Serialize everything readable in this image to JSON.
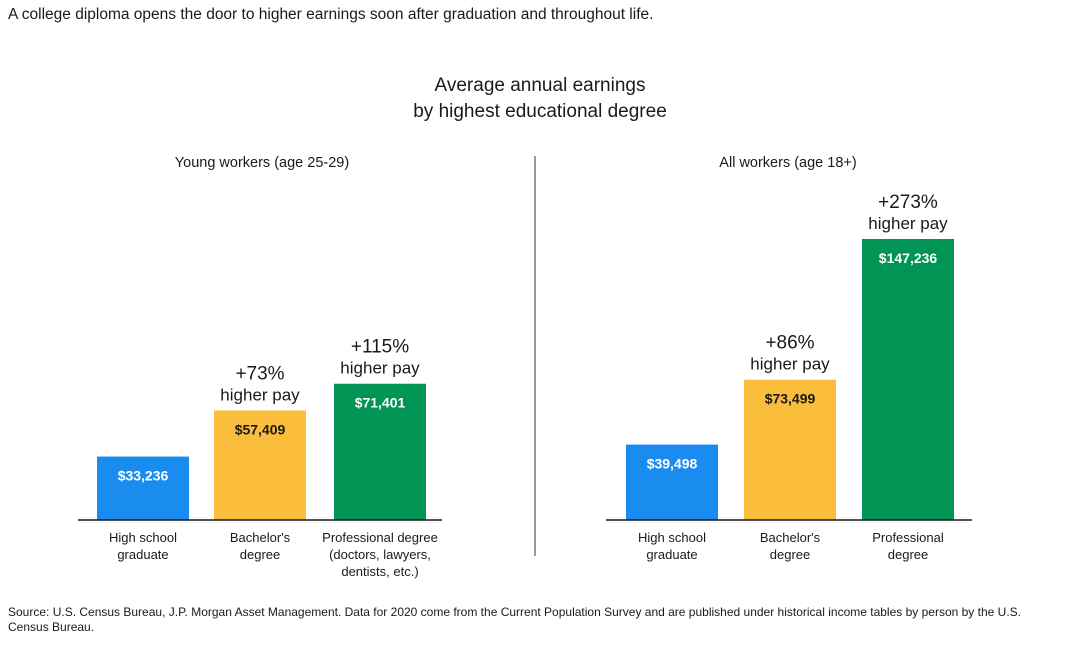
{
  "headline": "A college diploma opens the door to higher earnings soon after graduation and throughout life.",
  "chart_title": [
    "Average annual earnings",
    "by highest educational degree"
  ],
  "source": "Source: U.S. Census Bureau, J.P. Morgan Asset Management. Data for 2020 come from the Current Population Survey and are published under historical income tables by person by the U.S. Census Bureau.",
  "colors": {
    "high_school": "#1a8cf0",
    "bachelors": "#fbbe3c",
    "professional": "#009455"
  },
  "chart_data": [
    {
      "type": "bar",
      "title": "Young workers (age 25-29)",
      "unit": "USD per year",
      "ylim": [
        0,
        150000
      ],
      "categories": [
        [
          "High school",
          "graduate"
        ],
        [
          "Bachelor's",
          "degree"
        ],
        [
          "Professional degree",
          "(doctors, lawyers,",
          "dentists, etc.)"
        ]
      ],
      "values": [
        33236,
        57409,
        71401
      ],
      "value_labels": [
        "$33,236",
        "$57,409",
        "$71,401"
      ],
      "annotations": [
        null,
        [
          "+73%",
          "higher pay"
        ],
        [
          "+115%",
          "higher pay"
        ]
      ]
    },
    {
      "type": "bar",
      "title": "All workers (age 18+)",
      "unit": "USD per year",
      "ylim": [
        0,
        150000
      ],
      "categories": [
        [
          "High school",
          "graduate"
        ],
        [
          "Bachelor's",
          "degree"
        ],
        [
          "Professional",
          "degree"
        ]
      ],
      "values": [
        39498,
        73499,
        147236
      ],
      "value_labels": [
        "$39,498",
        "$73,499",
        "$147,236"
      ],
      "annotations": [
        null,
        [
          "+86%",
          "higher pay"
        ],
        [
          "+273%",
          "higher pay"
        ]
      ]
    }
  ]
}
